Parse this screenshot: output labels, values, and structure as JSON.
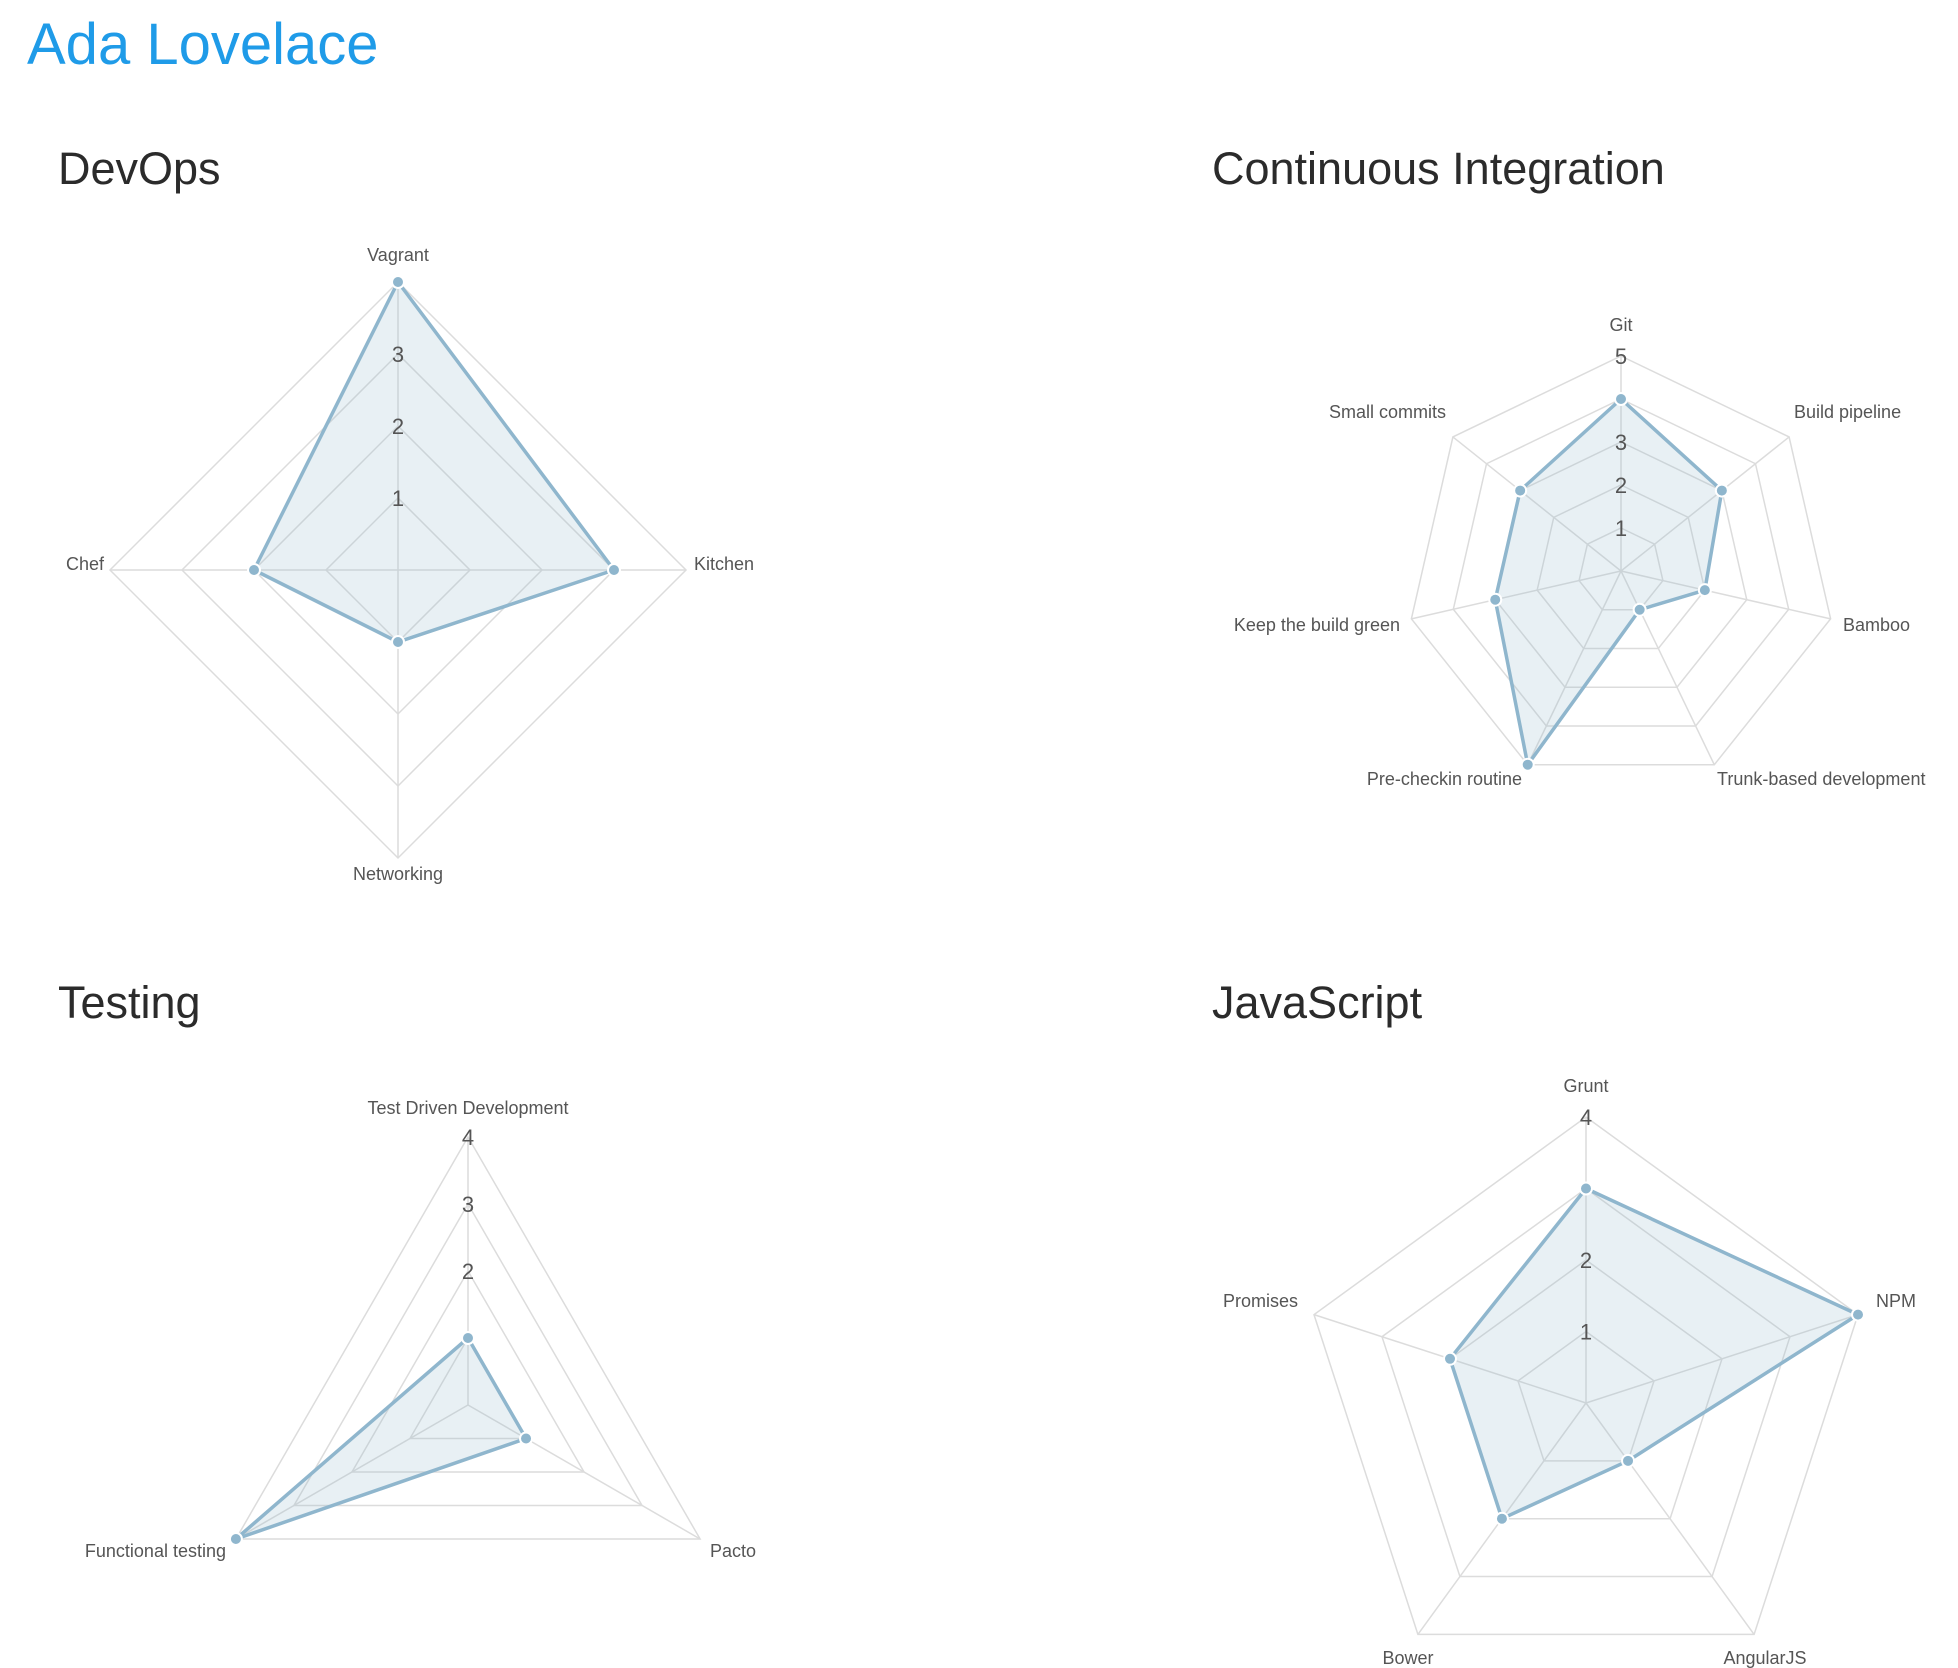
{
  "page": {
    "title": "Ada Lovelace"
  },
  "colors": {
    "title": "#1f9be8",
    "series_stroke": "#8fb6cd",
    "series_fill": "rgba(151,187,205,0.22)",
    "grid": "#dcdcdc"
  },
  "chart_data": [
    {
      "type": "radar",
      "title": "DevOps",
      "categories": [
        "Vagrant",
        "Kitchen",
        "Networking",
        "Chef"
      ],
      "values": [
        4,
        3,
        1,
        2
      ],
      "ticks": [
        "1",
        "2",
        "3"
      ],
      "range": [
        0,
        4
      ]
    },
    {
      "type": "radar",
      "title": "Continuous Integration",
      "categories": [
        "Git",
        "Build pipeline",
        "Bamboo",
        "Trunk-based development",
        "Pre-checkin routine",
        "Keep the build green",
        "Small commits"
      ],
      "values": [
        4,
        3,
        2,
        1,
        5,
        3,
        3
      ],
      "ticks": [
        "1",
        "2",
        "3",
        "",
        "5"
      ],
      "range": [
        0,
        5
      ]
    },
    {
      "type": "radar",
      "title": "Testing",
      "categories": [
        "Test Driven Development",
        "Pacto",
        "Functional testing"
      ],
      "values": [
        1,
        1,
        4
      ],
      "ticks": [
        "",
        "2",
        "3",
        "4"
      ],
      "range": [
        0,
        4
      ]
    },
    {
      "type": "radar",
      "title": "JavaScript",
      "categories": [
        "Grunt",
        "NPM",
        "AngularJS",
        "Bower",
        "Promises"
      ],
      "values": [
        3,
        4,
        1,
        2,
        2
      ],
      "ticks": [
        "1",
        "2",
        "",
        "4"
      ],
      "range": [
        0,
        4
      ]
    }
  ]
}
